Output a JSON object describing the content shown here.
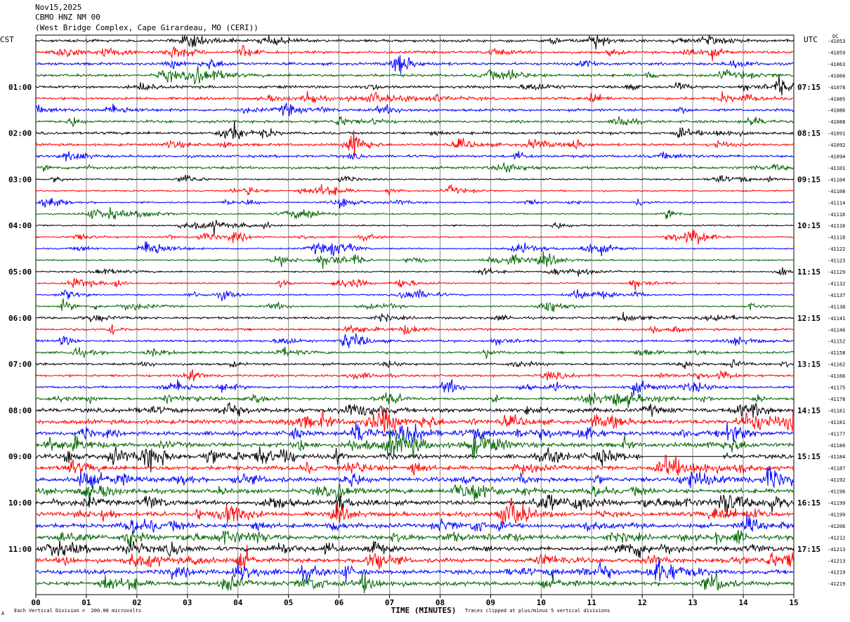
{
  "header": {
    "date": "Nov15,2025",
    "station": "CBMO HNZ NM 00",
    "location": "(West Bridge Complex, Cape Girardeau, MO (CERI))"
  },
  "labels": {
    "left_zone": "CST",
    "right_zone": "UTC",
    "dc": "DC",
    "corner_mark": "A",
    "scale_note": "Each Vertical Division =  200.00 microvolts",
    "clip_note": "Traces clipped at plus/minus 5 vertical divisions"
  },
  "chart_data": {
    "type": "helicorder",
    "xlabel": "TIME (MINUTES)",
    "xlim": [
      0,
      15
    ],
    "x_ticks": [
      "00",
      "01",
      "02",
      "03",
      "04",
      "05",
      "06",
      "07",
      "08",
      "09",
      "10",
      "11",
      "12",
      "13",
      "14",
      "15"
    ],
    "trace_colors": [
      "#000000",
      "#ff0000",
      "#0000ff",
      "#006400"
    ],
    "left_hour_labels": [
      "01:00",
      "02:00",
      "03:00",
      "04:00",
      "05:00",
      "06:00",
      "07:00",
      "08:00",
      "09:00",
      "10:00",
      "11:00"
    ],
    "right_hour_labels": [
      "07:15",
      "08:15",
      "09:15",
      "10:15",
      "11:15",
      "12:15",
      "13:15",
      "14:15",
      "15:15",
      "16:15",
      "17:15"
    ],
    "dc_offsets": [
      "-41053",
      "-41059",
      "-41063",
      "-41066",
      "-41078",
      "-41085",
      "-41086",
      "-41088",
      "-41091",
      "-41092",
      "-41094",
      "-41101",
      "-41104",
      "-41108",
      "-41114",
      "-41116",
      "-41116",
      "-41118",
      "-41122",
      "-41123",
      "-41129",
      "-41132",
      "-41137",
      "-41138",
      "-41141",
      "-41146",
      "-41152",
      "-41158",
      "-41162",
      "-41166",
      "-41175",
      "-41178",
      "-41181",
      "-41181",
      "-41177",
      "-41180",
      "-41184",
      "-41187",
      "-41192",
      "-41196",
      "-41199",
      "-41199",
      "-41206",
      "-41212",
      "-41213",
      "-41213",
      "-41219",
      "-41219"
    ],
    "trace_count": 48,
    "gap": {
      "trace": 36,
      "start_minute": 12.0,
      "end_minute": 13.6
    }
  }
}
